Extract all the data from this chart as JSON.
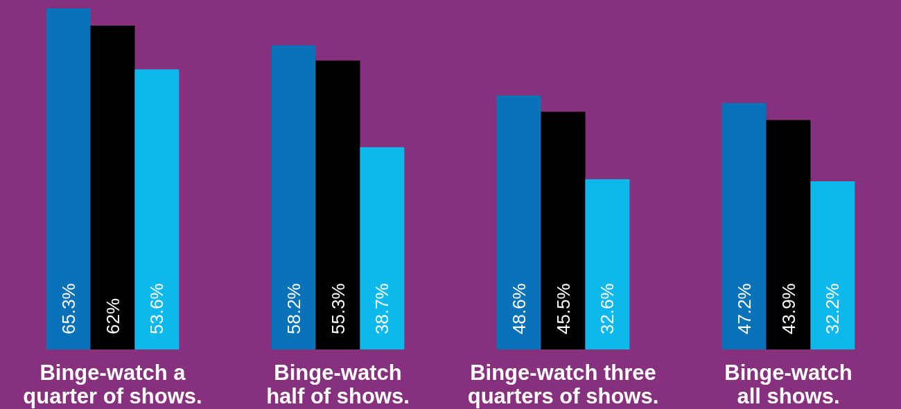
{
  "chart_data": {
    "type": "bar",
    "categories": [
      "Binge-watch a\nquarter of shows.",
      "Binge-watch\nhalf of shows.",
      "Binge-watch three\nquarters of shows.",
      "Binge-watch\nall shows."
    ],
    "series": [
      {
        "color": "#0872b9",
        "values": [
          65.3,
          58.2,
          48.6,
          47.2
        ],
        "value_labels": [
          "65.3%",
          "58.2%",
          "48.6%",
          "47.2%"
        ]
      },
      {
        "color": "#000000",
        "values": [
          62,
          55.3,
          45.5,
          43.9
        ],
        "value_labels": [
          "62%",
          "55.3%",
          "45.5%",
          "43.9%"
        ]
      },
      {
        "color": "#0db8ec",
        "values": [
          53.6,
          38.7,
          32.6,
          32.2
        ],
        "value_labels": [
          "53.6%",
          "38.7%",
          "32.6%",
          "32.2%"
        ]
      }
    ]
  }
}
